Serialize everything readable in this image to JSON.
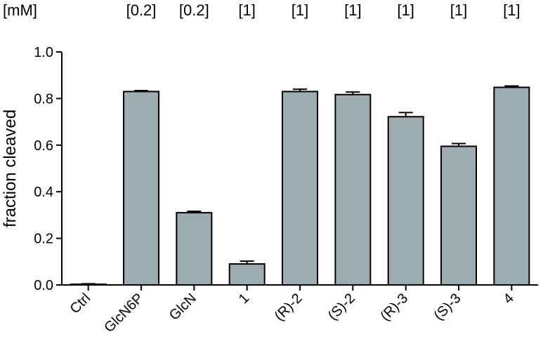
{
  "chart_data": {
    "type": "bar",
    "ylabel": "fraction cleaved",
    "xlabel": "",
    "ylim": [
      0,
      1.0
    ],
    "yticks": [
      "0.0",
      "0.2",
      "0.4",
      "0.6",
      "0.8",
      "1.0"
    ],
    "concentration_unit": "[mM]",
    "concentrations": [
      "[0.2]",
      "[0.2]",
      "[1]",
      "[1]",
      "[1]",
      "[1]",
      "[1]",
      "[1]"
    ],
    "categories": [
      "Ctrl",
      "GlcN6P",
      "GlcN",
      "1",
      "(R)-2",
      "(S)-2",
      "(R)-3",
      "(S)-3",
      "4"
    ],
    "values": [
      0.003,
      0.83,
      0.31,
      0.09,
      0.83,
      0.817,
      0.722,
      0.595,
      0.848
    ],
    "errors": [
      0.002,
      0.004,
      0.006,
      0.012,
      0.01,
      0.011,
      0.018,
      0.012,
      0.006
    ],
    "bar_color": "#9eabb0",
    "grid": false
  }
}
